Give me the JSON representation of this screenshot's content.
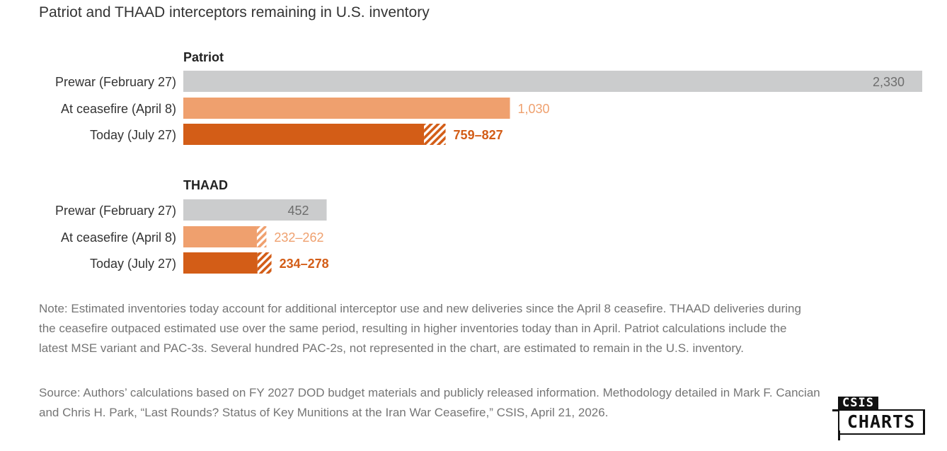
{
  "chart_data": {
    "type": "bar",
    "orientation": "horizontal",
    "title": "Patriot and THAAD interceptors remaining in U.S. inventory",
    "grid": false,
    "legend": "none",
    "colors": {
      "prewar": "#cbcccd",
      "ceasefire": "#efa06e",
      "today": "#d35d17",
      "prewar_label": "#6e6e6e",
      "ceasefire_label": "#efa06e",
      "today_label": "#d35d17"
    },
    "groups": [
      {
        "name": "Patriot",
        "bars": [
          {
            "category": "Prewar (February 27)",
            "low": 2330,
            "high": 2330,
            "label": "2,330",
            "label_inside": true
          },
          {
            "category": "At ceasefire (April 8)",
            "low": 1030,
            "high": 1030,
            "label": "1,030"
          },
          {
            "category": "Today (July 27)",
            "low": 759,
            "high": 827,
            "label": "759–827",
            "bold": true
          }
        ]
      },
      {
        "name": "THAAD",
        "bars": [
          {
            "category": "Prewar (February 27)",
            "low": 452,
            "high": 452,
            "label": "452",
            "label_inside": true
          },
          {
            "category": "At ceasefire (April 8)",
            "low": 232,
            "high": 262,
            "label": "232–262"
          },
          {
            "category": "Today (July 27)",
            "low": 234,
            "high": 278,
            "label": "234–278",
            "bold": true
          }
        ]
      }
    ],
    "xlim": [
      0,
      2330
    ]
  },
  "note": "Note: Estimated inventories today account for additional interceptor use and new deliveries since the April 8 ceasefire. THAAD deliveries during the ceasefire outpaced estimated use over the same period, resulting in higher inventories today than in April. Patriot calculations include the latest MSE variant and PAC-3s. Several hundred PAC-2s, not represented in the chart, are estimated to remain in the U.S. inventory.",
  "source": "Source: Authors’ calculations based on FY 2027 DOD budget materials and publicly released information. Methodology detailed in Mark F. Cancian and Chris H. Park, “Last Rounds? Status of Key Munitions at the Iran War Ceasefire,” CSIS, April 21, 2026.",
  "logo": {
    "top": "CSIS",
    "main": "CHARTS"
  }
}
